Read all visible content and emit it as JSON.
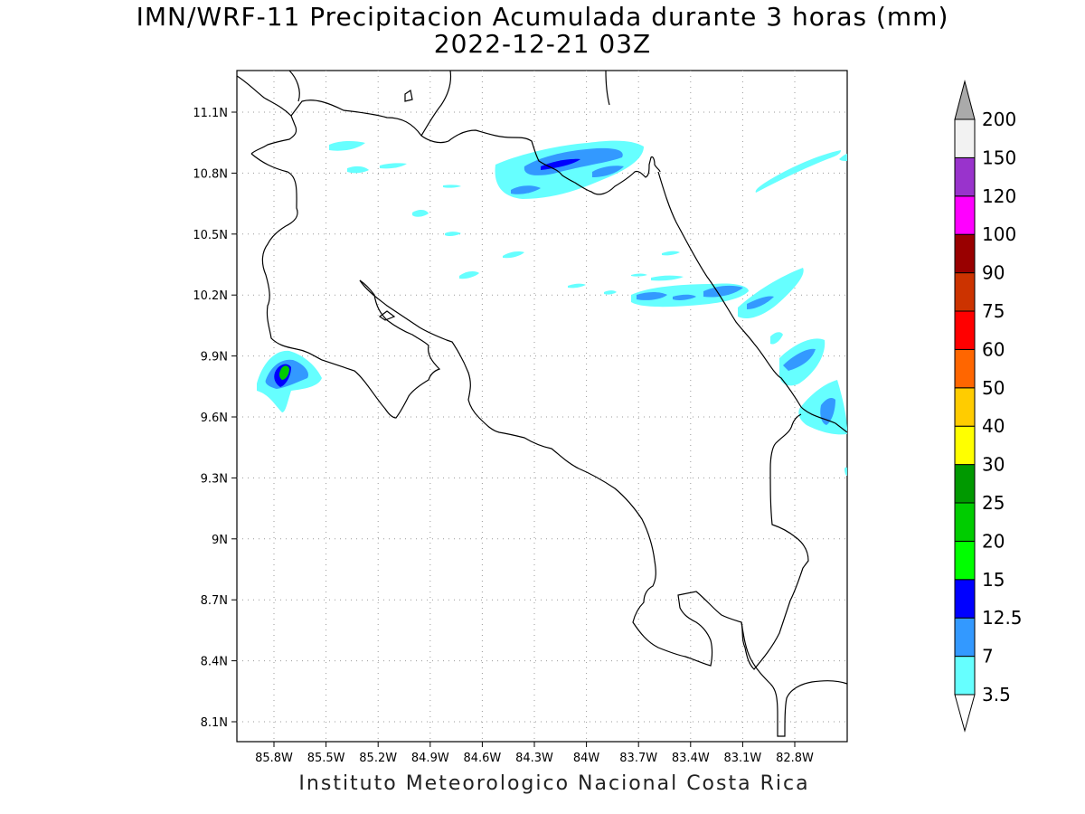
{
  "title": {
    "line1": "IMN/WRF-11 Precipitacion Acumulada durante 3 horas (mm)",
    "line2": "2022-12-21 03Z"
  },
  "footer": "Instituto Meteorologico Nacional Costa Rica",
  "axes": {
    "x_ticks": [
      "85.8W",
      "85.5W",
      "85.2W",
      "84.9W",
      "84.6W",
      "84.3W",
      "84W",
      "83.7W",
      "83.4W",
      "83.1W",
      "82.8W"
    ],
    "y_ticks": [
      "11.1N",
      "10.8N",
      "10.5N",
      "10.2N",
      "9.9N",
      "9.6N",
      "9.3N",
      "9N",
      "8.7N",
      "8.4N",
      "8.1N"
    ],
    "grid": "dotted"
  },
  "legend": {
    "labels": [
      "3.5",
      "7",
      "12.5",
      "15",
      "20",
      "25",
      "30",
      "40",
      "50",
      "60",
      "75",
      "90",
      "100",
      "120",
      "150",
      "200"
    ],
    "colors": [
      "#66ffff",
      "#3399ff",
      "#0000ff",
      "#00ff00",
      "#00cc00",
      "#009900",
      "#ffff00",
      "#ffcc00",
      "#ff6600",
      "#ff0000",
      "#cc3300",
      "#990000",
      "#ff00ff",
      "#9933cc",
      "#f2f2f2",
      "#aaaaaa"
    ]
  }
}
